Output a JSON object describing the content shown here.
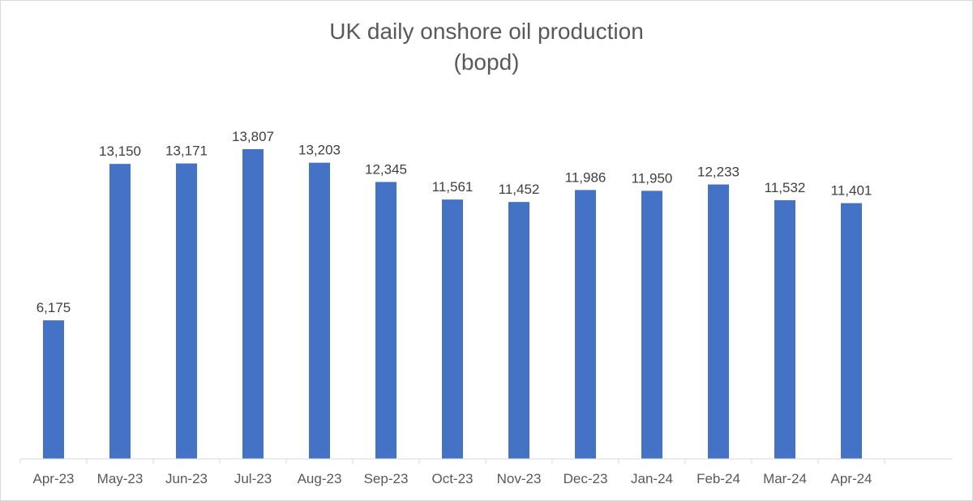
{
  "chart_data": {
    "type": "bar",
    "title": "UK daily onshore oil production",
    "subtitle": "(bopd)",
    "xlabel": "",
    "ylabel": "",
    "categories": [
      "Apr-23",
      "May-23",
      "Jun-23",
      "Jul-23",
      "Aug-23",
      "Sep-23",
      "Oct-23",
      "Nov-23",
      "Dec-23",
      "Jan-24",
      "Feb-24",
      "Mar-24",
      "Apr-24"
    ],
    "values": [
      6175,
      13150,
      13171,
      13807,
      13203,
      12345,
      11561,
      11452,
      11986,
      11950,
      12233,
      11532,
      11401
    ],
    "data_labels": [
      "6,175",
      "13,150",
      "13,171",
      "13,807",
      "13,203",
      "12,345",
      "11,561",
      "11,452",
      "11,986",
      "11,950",
      "12,233",
      "11,532",
      "11,401"
    ],
    "ylim": [
      0,
      15000
    ],
    "grid": false,
    "legend": "none",
    "bar_color": "#4472C4"
  }
}
